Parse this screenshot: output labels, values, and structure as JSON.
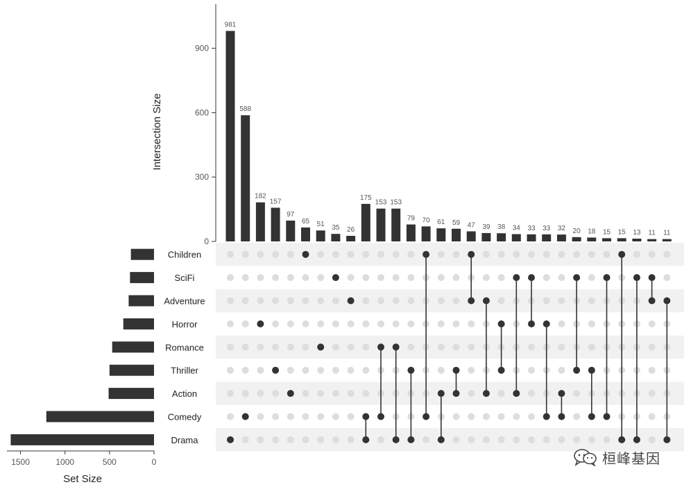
{
  "chart_data": {
    "type": "bar",
    "chart_kind": "upset",
    "ylabel": "Intersection Size",
    "xlabel_sets": "Set Size",
    "y_ticks": [
      0,
      300,
      600,
      900
    ],
    "set_size_ticks": [
      1500,
      1000,
      500,
      0
    ],
    "sets": [
      "Children",
      "SciFi",
      "Adventure",
      "Horror",
      "Romance",
      "Thriller",
      "Action",
      "Comedy",
      "Drama"
    ],
    "set_sizes": [
      260,
      270,
      285,
      345,
      470,
      500,
      510,
      1210,
      1610
    ],
    "intersections": [
      {
        "members": [
          "Drama"
        ],
        "size": 981
      },
      {
        "members": [
          "Comedy"
        ],
        "size": 588
      },
      {
        "members": [
          "Horror"
        ],
        "size": 182
      },
      {
        "members": [
          "Thriller"
        ],
        "size": 157
      },
      {
        "members": [
          "Action"
        ],
        "size": 97
      },
      {
        "members": [
          "Children"
        ],
        "size": 65
      },
      {
        "members": [
          "Romance"
        ],
        "size": 51
      },
      {
        "members": [
          "SciFi"
        ],
        "size": 35
      },
      {
        "members": [
          "Adventure"
        ],
        "size": 26
      },
      {
        "members": [
          "Comedy",
          "Drama"
        ],
        "size": 175
      },
      {
        "members": [
          "Romance",
          "Comedy"
        ],
        "size": 153
      },
      {
        "members": [
          "Romance",
          "Drama"
        ],
        "size": 153
      },
      {
        "members": [
          "Thriller",
          "Drama"
        ],
        "size": 79
      },
      {
        "members": [
          "Children",
          "Comedy"
        ],
        "size": 70
      },
      {
        "members": [
          "Action",
          "Drama"
        ],
        "size": 61
      },
      {
        "members": [
          "Thriller",
          "Action"
        ],
        "size": 59
      },
      {
        "members": [
          "Children",
          "Adventure"
        ],
        "size": 47
      },
      {
        "members": [
          "Adventure",
          "Action"
        ],
        "size": 39
      },
      {
        "members": [
          "Horror",
          "Thriller"
        ],
        "size": 38
      },
      {
        "members": [
          "SciFi",
          "Action"
        ],
        "size": 34
      },
      {
        "members": [
          "SciFi",
          "Horror"
        ],
        "size": 33
      },
      {
        "members": [
          "Horror",
          "Comedy"
        ],
        "size": 33
      },
      {
        "members": [
          "Action",
          "Comedy"
        ],
        "size": 32
      },
      {
        "members": [
          "SciFi",
          "Thriller"
        ],
        "size": 20
      },
      {
        "members": [
          "Thriller",
          "Comedy"
        ],
        "size": 18
      },
      {
        "members": [
          "SciFi",
          "Comedy"
        ],
        "size": 15
      },
      {
        "members": [
          "Children",
          "Drama"
        ],
        "size": 15
      },
      {
        "members": [
          "SciFi",
          "Drama"
        ],
        "size": 13
      },
      {
        "members": [
          "SciFi",
          "Adventure"
        ],
        "size": 11
      },
      {
        "members": [
          "Adventure",
          "Drama"
        ],
        "size": 11
      }
    ],
    "bar_color": "#333333",
    "dot_active_color": "#333333",
    "dot_inactive_color": "#dddddd",
    "stripe_color": "#f1f1f1"
  },
  "watermark": {
    "text": "桓峰基因",
    "icon": "wechat-icon"
  }
}
